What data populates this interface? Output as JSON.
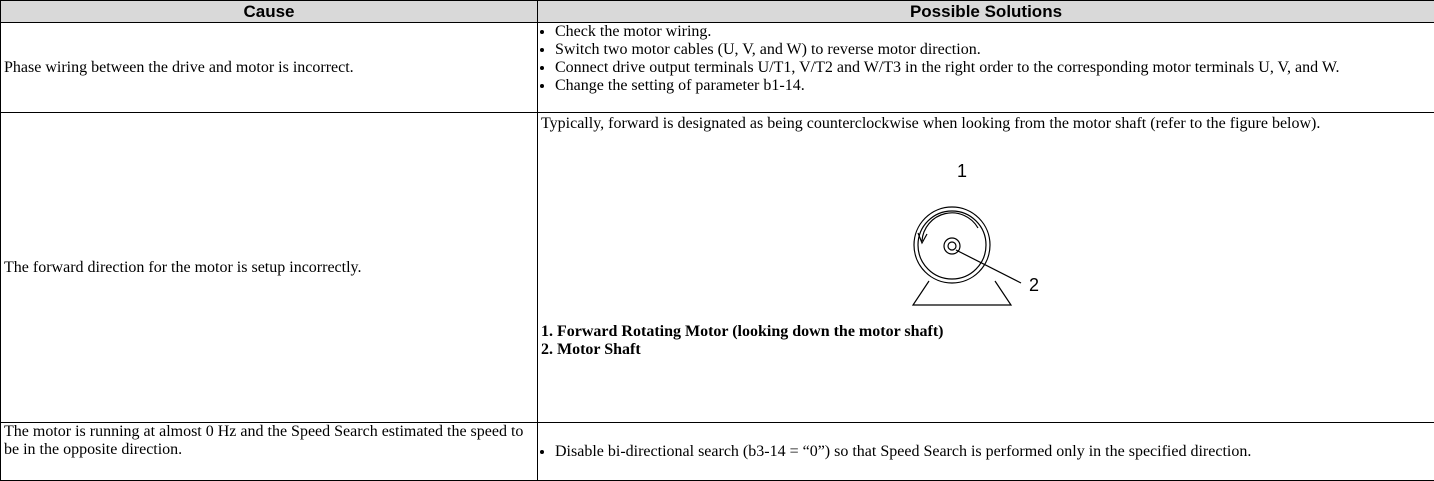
{
  "table": {
    "headers": [
      "Cause",
      "Possible Solutions"
    ],
    "rows": [
      {
        "cause": "Phase wiring between the drive and motor is incorrect.",
        "solutions": {
          "bullets": [
            "Check the motor wiring.",
            "Switch two motor cables (U, V, and W) to reverse motor direction.",
            "Connect drive output terminals U/T1, V/T2 and W/T3 in the right order to the corresponding motor terminals U, V, and W.",
            "Change the setting of parameter b1-14."
          ]
        }
      },
      {
        "cause": "The forward direction for the motor is setup incorrectly.",
        "solutions": {
          "text": "Typically, forward is designated as being counterclockwise when looking from the motor shaft (refer to the figure below).",
          "figure_labels": [
            "1",
            "2"
          ],
          "legend": [
            "1. Forward Rotating Motor (looking down the motor shaft)",
            "2. Motor Shaft"
          ]
        }
      },
      {
        "cause": "The motor is running at almost 0 Hz and the Speed Search estimated the speed to be in the opposite direction.",
        "solutions": {
          "bullets": [
            "Disable bi-directional search (b3-14 = “0”) so that Speed Search is performed only in the specified direction."
          ]
        }
      }
    ]
  }
}
